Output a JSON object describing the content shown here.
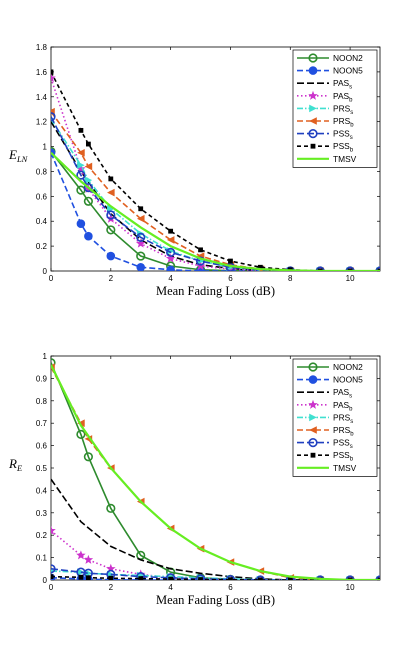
{
  "chart_data": [
    {
      "type": "line",
      "ylabel": "E",
      "ylabel_sub": "LN",
      "xlabel": "Mean Fading Loss (dB)",
      "xlim": [
        0,
        11
      ],
      "ylim": [
        0,
        1.8
      ],
      "xticks": [
        "0",
        "2",
        "4",
        "6",
        "8",
        "10"
      ],
      "yticks": [
        "0",
        "0.2",
        "0.4",
        "0.6",
        "0.8",
        "1",
        "1.2",
        "1.4",
        "1.6",
        "1.8"
      ],
      "legend_position": "top-right",
      "series": [
        {
          "name": "NOON2",
          "sub": "",
          "color": "#2e8b2e",
          "dash": "",
          "marker": "circle-open",
          "x": [
            0,
            1,
            1.25,
            2,
            3,
            4,
            5,
            6,
            7,
            8,
            9,
            10,
            11
          ],
          "y": [
            0.96,
            0.65,
            0.56,
            0.33,
            0.12,
            0.04,
            0.01,
            0.003,
            0,
            0,
            0,
            0,
            0
          ]
        },
        {
          "name": "NOON5",
          "sub": "",
          "color": "#2050e0",
          "dash": "6,3",
          "marker": "circle-filled",
          "x": [
            0,
            1,
            1.25,
            2,
            3,
            4,
            5,
            6,
            7,
            8,
            9,
            10,
            11
          ],
          "y": [
            0.95,
            0.38,
            0.28,
            0.12,
            0.03,
            0.01,
            0,
            0,
            0,
            0,
            0,
            0,
            0
          ]
        },
        {
          "name": "PAS",
          "sub": "s",
          "color": "#000000",
          "dash": "7,3",
          "marker": "none",
          "x": [
            0,
            1,
            2,
            3,
            4,
            5,
            6,
            7,
            8,
            9,
            10,
            11
          ],
          "y": [
            1.2,
            0.8,
            0.46,
            0.25,
            0.12,
            0.05,
            0.02,
            0.005,
            0,
            0,
            0,
            0
          ]
        },
        {
          "name": "PAS",
          "sub": "b",
          "color": "#cc33cc",
          "dash": "1.5,2.5",
          "marker": "star",
          "x": [
            0,
            1,
            1.25,
            2,
            3,
            4,
            5,
            6,
            7,
            8,
            9,
            10,
            11
          ],
          "y": [
            1.55,
            0.82,
            0.66,
            0.42,
            0.22,
            0.1,
            0.04,
            0.015,
            0.005,
            0,
            0,
            0,
            0
          ]
        },
        {
          "name": "PRS",
          "sub": "s",
          "color": "#40e0d0",
          "dash": "6,2,1.5,2",
          "marker": "tri-right",
          "x": [
            0,
            1,
            1.25,
            2,
            3,
            4,
            5,
            6,
            7,
            8,
            9,
            10,
            11
          ],
          "y": [
            1.22,
            0.85,
            0.73,
            0.5,
            0.3,
            0.16,
            0.08,
            0.03,
            0.01,
            0,
            0,
            0,
            0
          ]
        },
        {
          "name": "PRS",
          "sub": "b",
          "color": "#e06020",
          "dash": "6,3",
          "marker": "tri-left",
          "x": [
            0,
            1,
            1.25,
            2,
            3,
            4,
            5,
            6,
            7,
            8,
            9,
            10,
            11
          ],
          "y": [
            1.28,
            0.95,
            0.84,
            0.63,
            0.42,
            0.25,
            0.12,
            0.05,
            0.015,
            0,
            0,
            0,
            0
          ]
        },
        {
          "name": "PSS",
          "sub": "s",
          "color": "#2040c0",
          "dash": "7,3",
          "marker": "circle-open",
          "x": [
            0,
            1,
            1.25,
            2,
            3,
            4,
            5,
            6,
            7,
            8,
            9,
            10,
            11
          ],
          "y": [
            1.24,
            0.77,
            0.67,
            0.45,
            0.27,
            0.15,
            0.08,
            0.03,
            0.01,
            0,
            0,
            0,
            0
          ]
        },
        {
          "name": "PSS",
          "sub": "b",
          "color": "#000000",
          "dash": "4,3",
          "marker": "square",
          "x": [
            0,
            1,
            1.25,
            2,
            3,
            4,
            5,
            6,
            7,
            8,
            9,
            10,
            11
          ],
          "y": [
            1.6,
            1.13,
            1.02,
            0.74,
            0.5,
            0.32,
            0.17,
            0.08,
            0.03,
            0.01,
            0,
            0,
            0
          ]
        },
        {
          "name": "TMSV",
          "sub": "",
          "color": "#66ee22",
          "dash": "",
          "marker": "none",
          "x": [
            0,
            1,
            2,
            3,
            4,
            5,
            6,
            7,
            8,
            9,
            10,
            11
          ],
          "y": [
            0.95,
            0.72,
            0.52,
            0.35,
            0.2,
            0.1,
            0.04,
            0.015,
            0.005,
            0,
            0,
            0
          ]
        }
      ]
    },
    {
      "type": "line",
      "ylabel": "R",
      "ylabel_sub": "E",
      "xlabel": "Mean Fading Loss (dB)",
      "xlim": [
        0,
        11
      ],
      "ylim": [
        0,
        1
      ],
      "xticks": [
        "0",
        "2",
        "4",
        "6",
        "8",
        "10"
      ],
      "yticks": [
        "0",
        "0.1",
        "0.2",
        "0.3",
        "0.4",
        "0.5",
        "0.6",
        "0.7",
        "0.8",
        "0.9",
        "1"
      ],
      "legend_position": "top-right",
      "series": [
        {
          "name": "NOON2",
          "sub": "",
          "color": "#2e8b2e",
          "dash": "",
          "marker": "circle-open",
          "x": [
            0,
            1,
            1.25,
            2,
            3,
            4,
            5,
            6,
            7,
            8,
            9,
            10,
            11
          ],
          "y": [
            0.97,
            0.65,
            0.55,
            0.32,
            0.11,
            0.035,
            0.01,
            0.003,
            0,
            0,
            0,
            0,
            0
          ]
        },
        {
          "name": "NOON5",
          "sub": "",
          "color": "#2050e0",
          "dash": "6,3",
          "marker": "circle-filled",
          "x": [
            0,
            1,
            1.25,
            2,
            3,
            4,
            5,
            6,
            7,
            8,
            9,
            10,
            11
          ],
          "y": [
            0.01,
            0.005,
            0.003,
            0.001,
            0,
            0,
            0,
            0,
            0,
            0,
            0,
            0,
            0
          ]
        },
        {
          "name": "PAS",
          "sub": "s",
          "color": "#000000",
          "dash": "7,3",
          "marker": "none",
          "x": [
            0,
            1,
            2,
            3,
            4,
            5,
            6,
            7,
            8,
            9,
            10,
            11
          ],
          "y": [
            0.45,
            0.26,
            0.15,
            0.09,
            0.05,
            0.03,
            0.015,
            0.005,
            0,
            0,
            0,
            0
          ]
        },
        {
          "name": "PAS",
          "sub": "b",
          "color": "#cc33cc",
          "dash": "1.5,2.5",
          "marker": "star",
          "x": [
            0,
            1,
            1.25,
            2,
            3,
            4,
            5,
            6,
            7,
            8,
            9,
            10,
            11
          ],
          "y": [
            0.22,
            0.11,
            0.09,
            0.05,
            0.025,
            0.01,
            0.005,
            0.002,
            0,
            0,
            0,
            0,
            0
          ]
        },
        {
          "name": "PRS",
          "sub": "s",
          "color": "#40e0d0",
          "dash": "6,2,1.5,2",
          "marker": "tri-right",
          "x": [
            0,
            1,
            1.25,
            2,
            3,
            4,
            5,
            6,
            7,
            8,
            9,
            10,
            11
          ],
          "y": [
            0.04,
            0.035,
            0.03,
            0.025,
            0.02,
            0.015,
            0.01,
            0.005,
            0.002,
            0,
            0,
            0,
            0
          ]
        },
        {
          "name": "PRS",
          "sub": "b",
          "color": "#e06020",
          "dash": "6,3",
          "marker": "tri-left",
          "x": [
            0,
            1,
            1.25,
            2,
            3,
            4,
            5,
            6,
            7,
            8,
            9,
            10,
            11
          ],
          "y": [
            0.95,
            0.7,
            0.63,
            0.5,
            0.35,
            0.23,
            0.14,
            0.08,
            0.04,
            0.01,
            0,
            0,
            0
          ]
        },
        {
          "name": "PSS",
          "sub": "s",
          "color": "#2040c0",
          "dash": "7,3",
          "marker": "circle-open",
          "x": [
            0,
            1,
            1.25,
            2,
            3,
            4,
            5,
            6,
            7,
            8,
            9,
            10,
            11
          ],
          "y": [
            0.05,
            0.035,
            0.03,
            0.025,
            0.015,
            0.01,
            0.005,
            0.002,
            0,
            0,
            0,
            0,
            0
          ]
        },
        {
          "name": "PSS",
          "sub": "b",
          "color": "#000000",
          "dash": "4,3",
          "marker": "square",
          "x": [
            0,
            1,
            1.25,
            2,
            3,
            4,
            5,
            6,
            7,
            8,
            9,
            10,
            11
          ],
          "y": [
            0.015,
            0.012,
            0.01,
            0.008,
            0.006,
            0.004,
            0.002,
            0.001,
            0,
            0,
            0,
            0,
            0
          ]
        },
        {
          "name": "TMSV",
          "sub": "",
          "color": "#66ee22",
          "dash": "",
          "marker": "none",
          "x": [
            0,
            1,
            2,
            3,
            4,
            5,
            6,
            7,
            8,
            9,
            10,
            11
          ],
          "y": [
            0.96,
            0.69,
            0.5,
            0.35,
            0.23,
            0.14,
            0.08,
            0.04,
            0.015,
            0.005,
            0,
            0
          ]
        }
      ]
    }
  ]
}
